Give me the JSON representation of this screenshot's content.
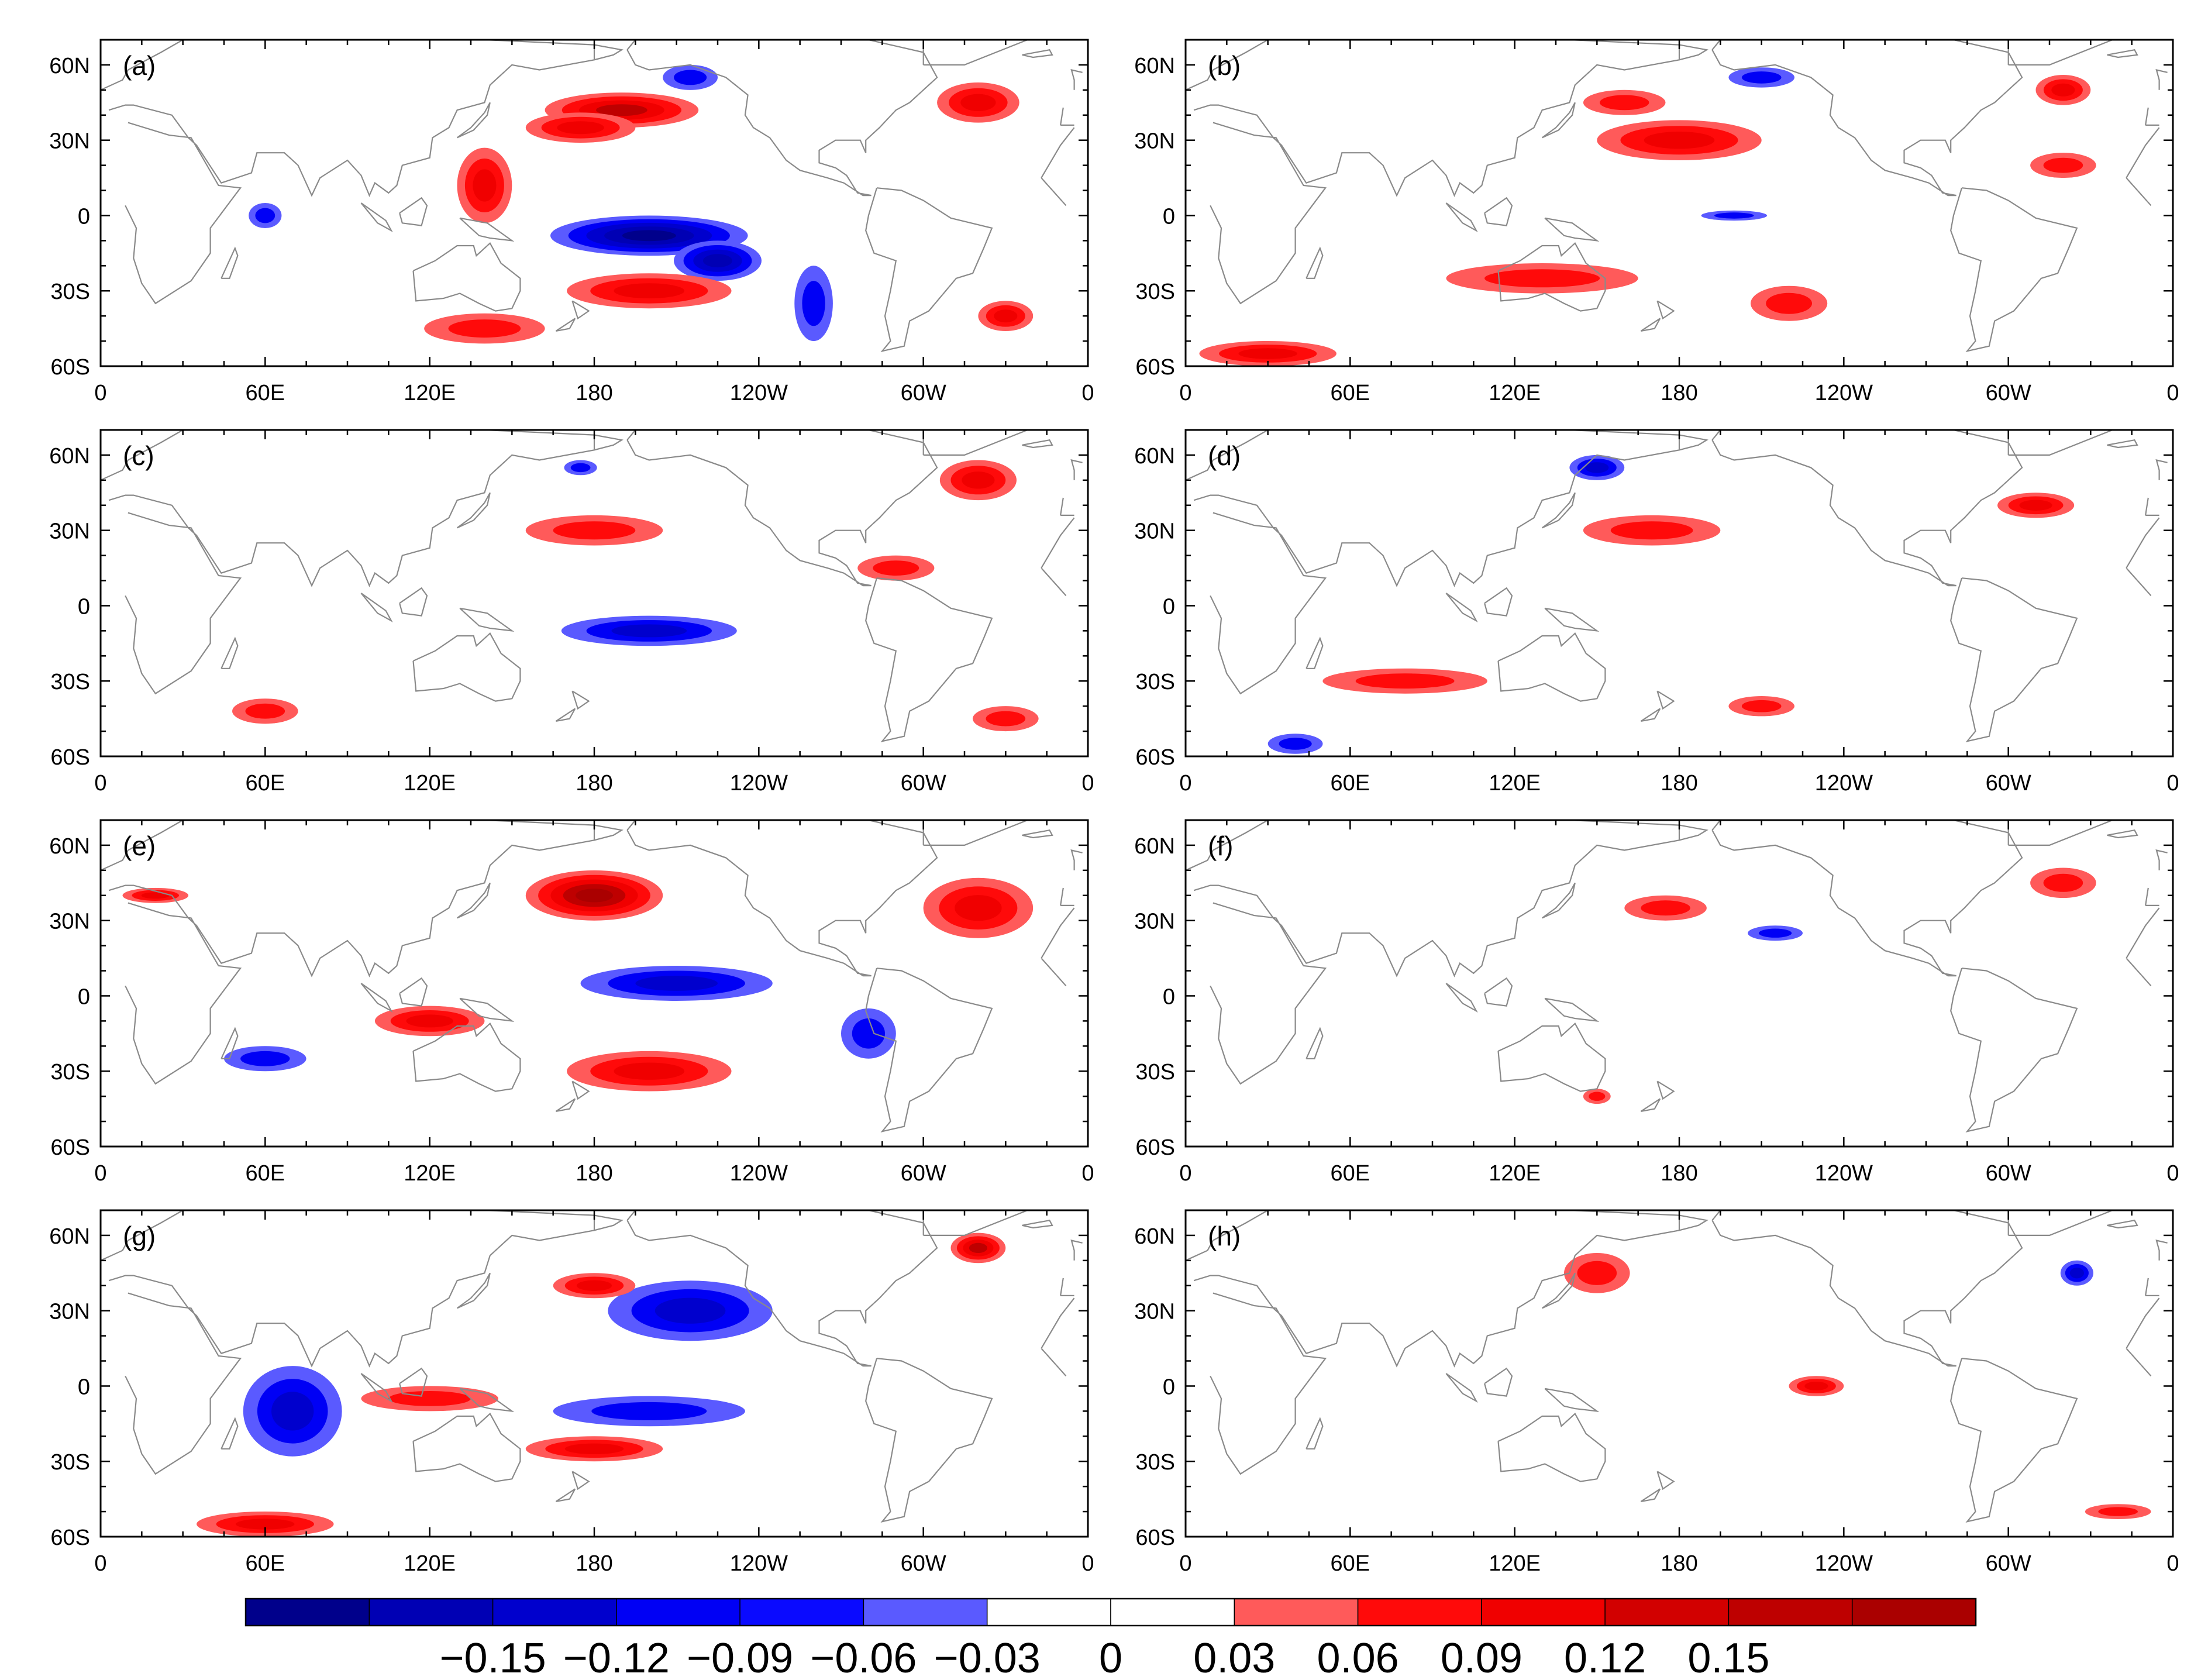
{
  "chart_data": {
    "type": "heatmap",
    "layout": "4 rows x 2 columns of global map panels",
    "projection": "cylindrical equidistant, longitude 0 to 360, latitude 60S to 70N",
    "xticks": [
      "0",
      "60E",
      "120E",
      "180",
      "120W",
      "60W",
      "0"
    ],
    "yticks": [
      "60N",
      "30N",
      "0",
      "30S",
      "60S"
    ],
    "colorbar": {
      "levels": [
        -0.15,
        -0.12,
        -0.09,
        -0.06,
        -0.03,
        0,
        0.03,
        0.06,
        0.09,
        0.12,
        0.15
      ],
      "labels": [
        "−0.15",
        "−0.12",
        "−0.09",
        "−0.06",
        "−0.03",
        "0",
        "0.03",
        "0.06",
        "0.09",
        "0.12",
        "0.15"
      ],
      "colors": [
        "#00008B",
        "#0000B4",
        "#0000CD",
        "#0000F5",
        "#0A0AFF",
        "#5A5AFF",
        "#FFFFFF",
        "#FFFFFF",
        "#FF5A5A",
        "#FF0A0A",
        "#F00000",
        "#D20000",
        "#BE0000",
        "#AA0000"
      ]
    },
    "panels": [
      {
        "label": "(a)",
        "features": [
          {
            "lon": 200,
            "lat": -8,
            "rx": 36,
            "ry": 8,
            "value": -0.15
          },
          {
            "lon": 225,
            "lat": -18,
            "rx": 16,
            "ry": 8,
            "value": -0.12
          },
          {
            "lon": 260,
            "lat": -35,
            "rx": 7,
            "ry": 15,
            "value": -0.06
          },
          {
            "lon": 190,
            "lat": 42,
            "rx": 28,
            "ry": 7,
            "value": 0.12
          },
          {
            "lon": 175,
            "lat": 35,
            "rx": 20,
            "ry": 6,
            "value": 0.09
          },
          {
            "lon": 200,
            "lat": -30,
            "rx": 30,
            "ry": 7,
            "value": 0.09
          },
          {
            "lon": 140,
            "lat": 12,
            "rx": 10,
            "ry": 15,
            "value": 0.09
          },
          {
            "lon": 320,
            "lat": 45,
            "rx": 15,
            "ry": 8,
            "value": 0.09
          },
          {
            "lon": 140,
            "lat": -45,
            "rx": 22,
            "ry": 6,
            "value": 0.06
          },
          {
            "lon": 330,
            "lat": -40,
            "rx": 10,
            "ry": 6,
            "value": 0.09
          },
          {
            "lon": 60,
            "lat": 0,
            "rx": 6,
            "ry": 5,
            "value": -0.06
          },
          {
            "lon": 215,
            "lat": 55,
            "rx": 10,
            "ry": 5,
            "value": -0.06
          }
        ]
      },
      {
        "label": "(b)",
        "features": [
          {
            "lon": 180,
            "lat": 30,
            "rx": 30,
            "ry": 8,
            "value": 0.09
          },
          {
            "lon": 160,
            "lat": 45,
            "rx": 15,
            "ry": 5,
            "value": 0.06
          },
          {
            "lon": 210,
            "lat": 55,
            "rx": 12,
            "ry": 4,
            "value": -0.06
          },
          {
            "lon": 130,
            "lat": -25,
            "rx": 35,
            "ry": 6,
            "value": 0.06
          },
          {
            "lon": 220,
            "lat": -35,
            "rx": 14,
            "ry": 7,
            "value": 0.06
          },
          {
            "lon": 200,
            "lat": 0,
            "rx": 12,
            "ry": 2,
            "value": -0.06
          },
          {
            "lon": 30,
            "lat": -55,
            "rx": 25,
            "ry": 5,
            "value": 0.09
          },
          {
            "lon": 320,
            "lat": 20,
            "rx": 12,
            "ry": 5,
            "value": 0.06
          },
          {
            "lon": 320,
            "lat": 50,
            "rx": 10,
            "ry": 6,
            "value": 0.09
          }
        ]
      },
      {
        "label": "(c)",
        "features": [
          {
            "lon": 200,
            "lat": -10,
            "rx": 32,
            "ry": 6,
            "value": -0.09
          },
          {
            "lon": 180,
            "lat": 30,
            "rx": 25,
            "ry": 6,
            "value": 0.06
          },
          {
            "lon": 320,
            "lat": 50,
            "rx": 14,
            "ry": 8,
            "value": 0.09
          },
          {
            "lon": 290,
            "lat": 15,
            "rx": 14,
            "ry": 5,
            "value": 0.06
          },
          {
            "lon": 60,
            "lat": -42,
            "rx": 12,
            "ry": 5,
            "value": 0.06
          },
          {
            "lon": 330,
            "lat": -45,
            "rx": 12,
            "ry": 5,
            "value": 0.06
          },
          {
            "lon": 175,
            "lat": 55,
            "rx": 6,
            "ry": 3,
            "value": -0.06
          }
        ]
      },
      {
        "label": "(d)",
        "features": [
          {
            "lon": 170,
            "lat": 30,
            "rx": 25,
            "ry": 6,
            "value": 0.06
          },
          {
            "lon": 150,
            "lat": 55,
            "rx": 10,
            "ry": 5,
            "value": -0.09
          },
          {
            "lon": 310,
            "lat": 40,
            "rx": 14,
            "ry": 5,
            "value": 0.09
          },
          {
            "lon": 80,
            "lat": -30,
            "rx": 30,
            "ry": 5,
            "value": 0.06
          },
          {
            "lon": 210,
            "lat": -40,
            "rx": 12,
            "ry": 4,
            "value": 0.06
          },
          {
            "lon": 40,
            "lat": -55,
            "rx": 10,
            "ry": 4,
            "value": -0.06
          }
        ]
      },
      {
        "label": "(e)",
        "features": [
          {
            "lon": 180,
            "lat": 40,
            "rx": 25,
            "ry": 10,
            "value": 0.15
          },
          {
            "lon": 210,
            "lat": 5,
            "rx": 35,
            "ry": 7,
            "value": -0.09
          },
          {
            "lon": 200,
            "lat": -30,
            "rx": 30,
            "ry": 8,
            "value": 0.09
          },
          {
            "lon": 320,
            "lat": 35,
            "rx": 20,
            "ry": 12,
            "value": 0.09
          },
          {
            "lon": 120,
            "lat": -10,
            "rx": 20,
            "ry": 6,
            "value": 0.09
          },
          {
            "lon": 20,
            "lat": 40,
            "rx": 12,
            "ry": 3,
            "value": 0.09
          },
          {
            "lon": 60,
            "lat": -25,
            "rx": 15,
            "ry": 5,
            "value": -0.06
          },
          {
            "lon": 280,
            "lat": -15,
            "rx": 10,
            "ry": 10,
            "value": -0.06
          }
        ]
      },
      {
        "label": "(f)",
        "features": [
          {
            "lon": 175,
            "lat": 35,
            "rx": 15,
            "ry": 5,
            "value": 0.06
          },
          {
            "lon": 215,
            "lat": 25,
            "rx": 10,
            "ry": 3,
            "value": -0.06
          },
          {
            "lon": 320,
            "lat": 45,
            "rx": 12,
            "ry": 6,
            "value": 0.06
          },
          {
            "lon": 150,
            "lat": -40,
            "rx": 5,
            "ry": 3,
            "value": 0.06
          }
        ]
      },
      {
        "label": "(g)",
        "features": [
          {
            "lon": 215,
            "lat": 30,
            "rx": 30,
            "ry": 12,
            "value": -0.09
          },
          {
            "lon": 180,
            "lat": 40,
            "rx": 15,
            "ry": 5,
            "value": 0.09
          },
          {
            "lon": 200,
            "lat": -10,
            "rx": 35,
            "ry": 6,
            "value": -0.06
          },
          {
            "lon": 70,
            "lat": -10,
            "rx": 18,
            "ry": 18,
            "value": -0.09
          },
          {
            "lon": 120,
            "lat": -5,
            "rx": 25,
            "ry": 5,
            "value": 0.06
          },
          {
            "lon": 180,
            "lat": -25,
            "rx": 25,
            "ry": 5,
            "value": 0.09
          },
          {
            "lon": 60,
            "lat": -55,
            "rx": 25,
            "ry": 5,
            "value": 0.09
          },
          {
            "lon": 320,
            "lat": 55,
            "rx": 10,
            "ry": 6,
            "value": 0.12
          }
        ]
      },
      {
        "label": "(h)",
        "features": [
          {
            "lon": 150,
            "lat": 45,
            "rx": 12,
            "ry": 8,
            "value": 0.06
          },
          {
            "lon": 230,
            "lat": 0,
            "rx": 10,
            "ry": 4,
            "value": 0.09
          },
          {
            "lon": 325,
            "lat": 45,
            "rx": 6,
            "ry": 5,
            "value": -0.09
          },
          {
            "lon": 340,
            "lat": -50,
            "rx": 12,
            "ry": 3,
            "value": 0.06
          }
        ]
      }
    ]
  }
}
